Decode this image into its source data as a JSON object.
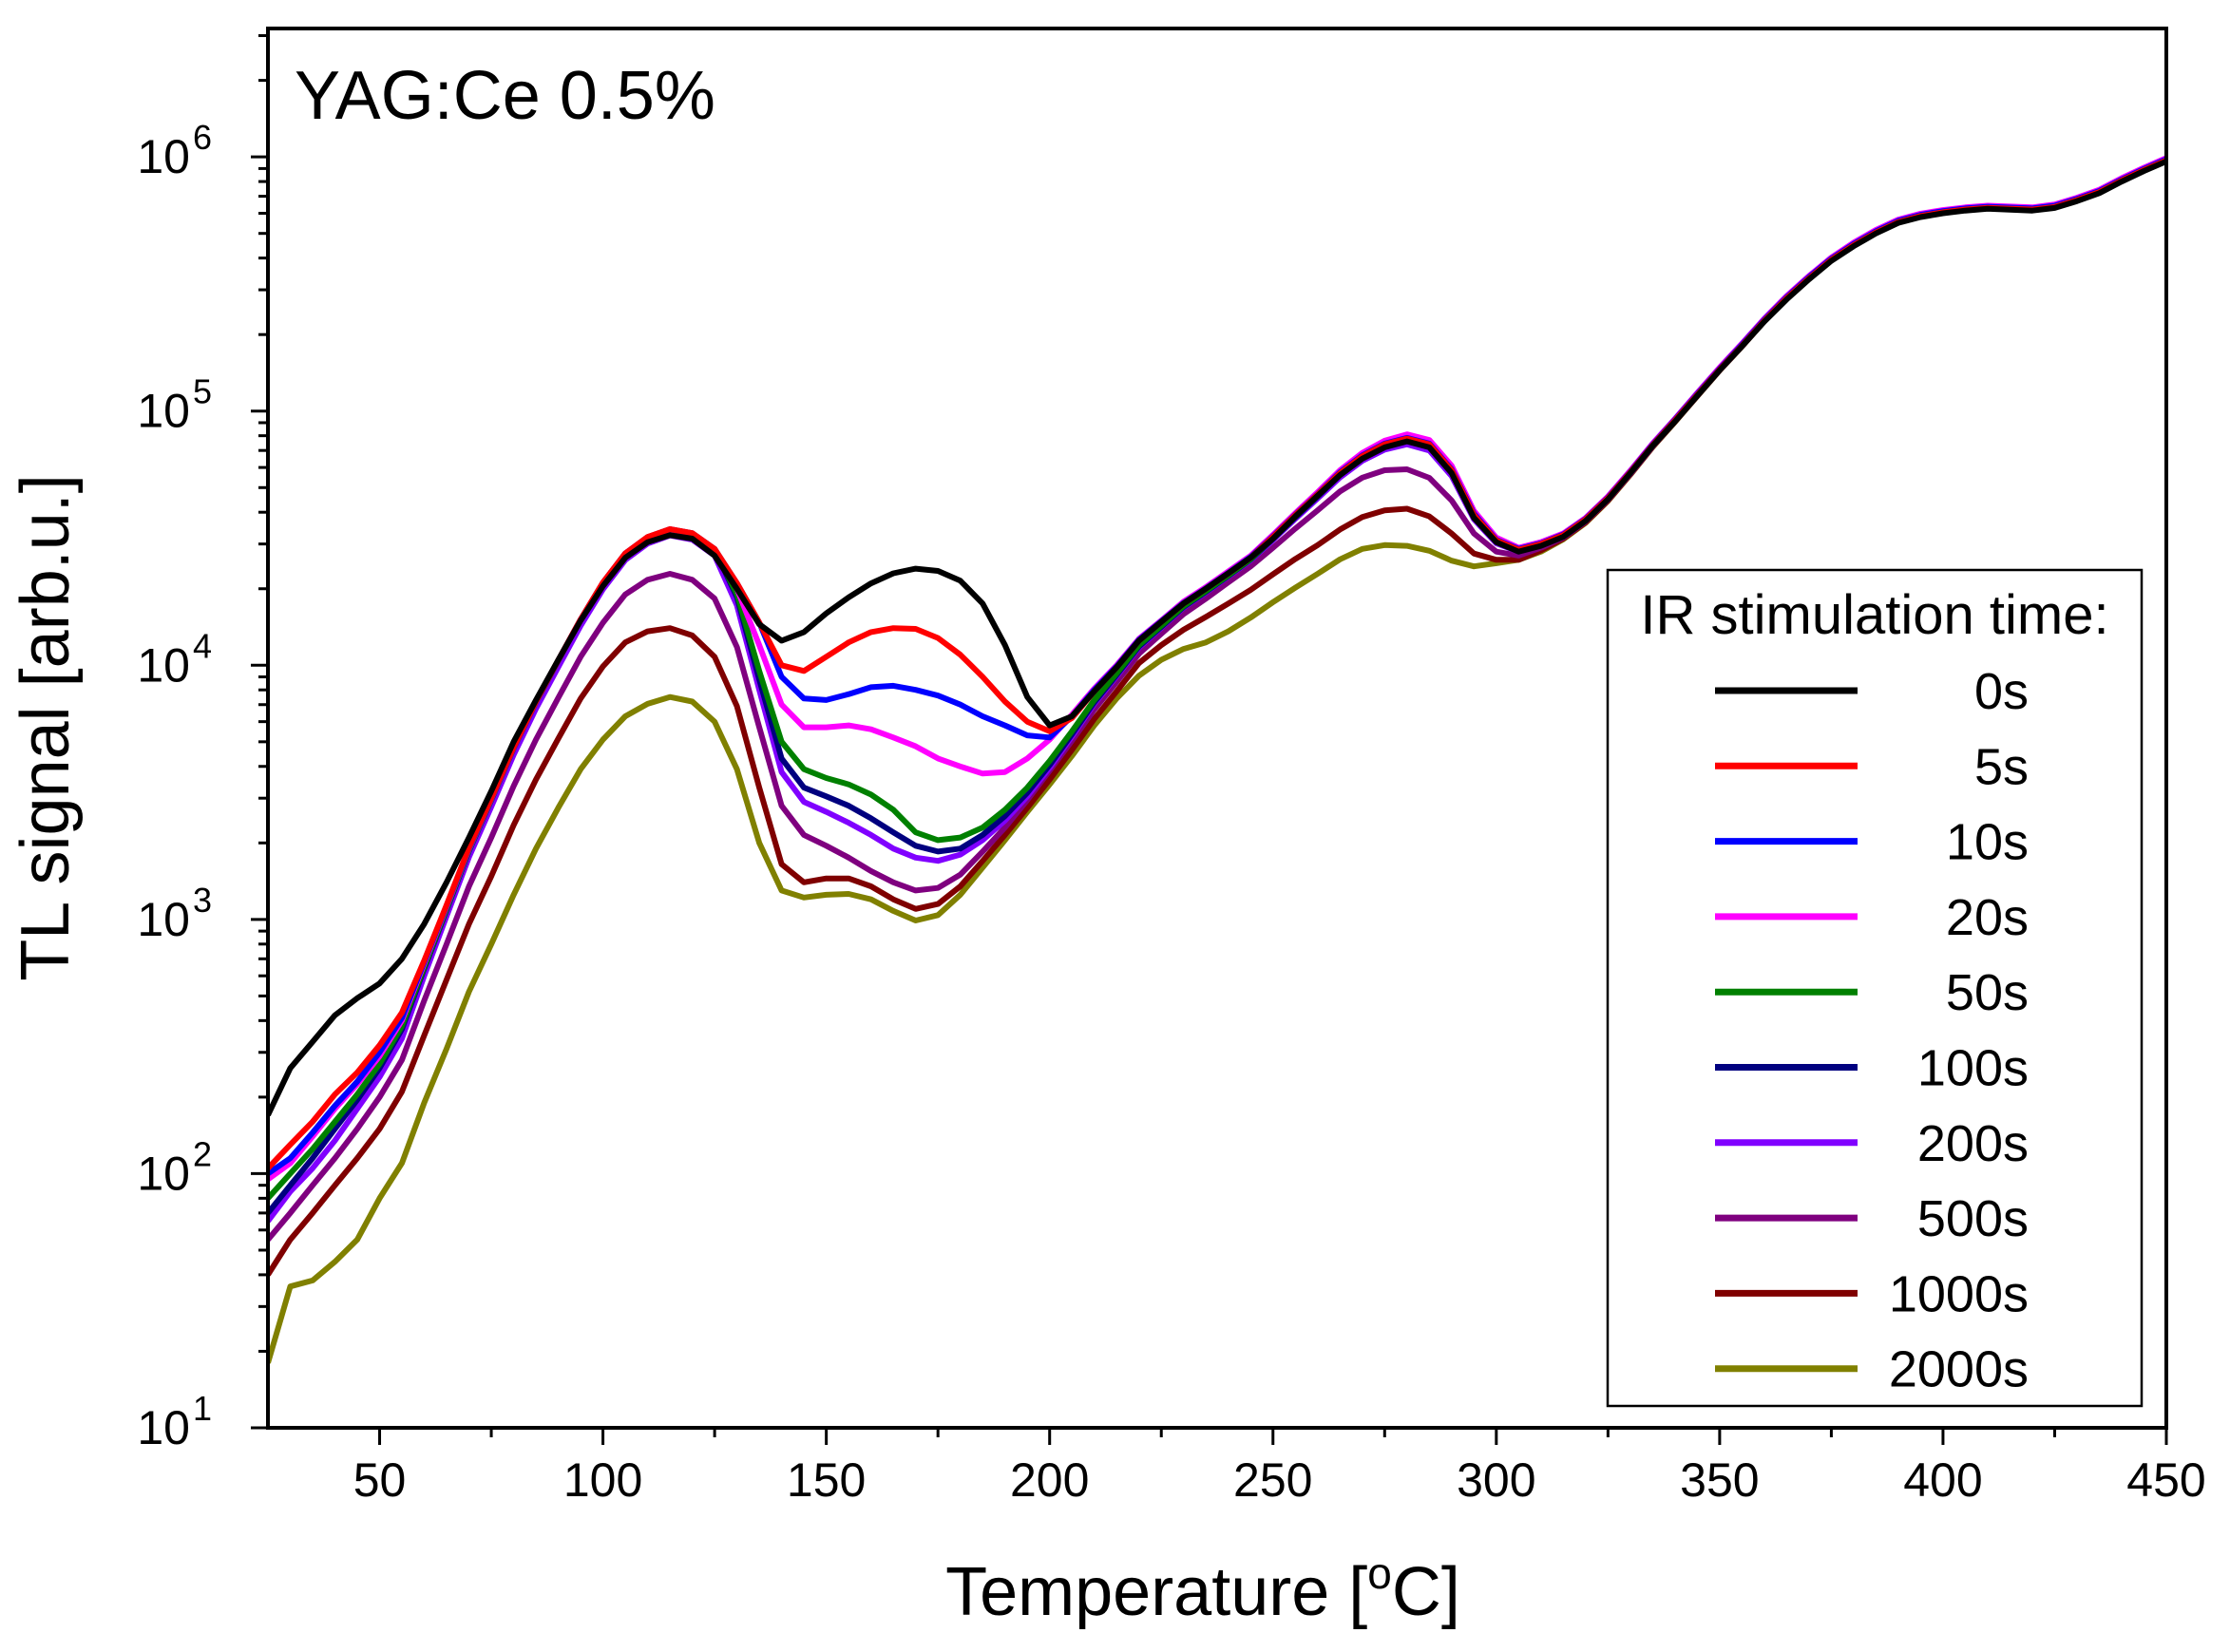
{
  "chart_data": {
    "type": "line",
    "annotation": "YAG:Ce 0.5%",
    "xlabel": "Temperature [",
    "xlabel_sup": "o",
    "xlabel_end": "C]",
    "ylabel": "TL signal [arb.u.]",
    "x_range": [
      25,
      450
    ],
    "y_range": [
      10,
      3200000
    ],
    "y_scale": "log",
    "x_ticks": [
      50,
      100,
      150,
      200,
      250,
      300,
      350,
      400,
      450
    ],
    "x_tick_labels": [
      "50",
      "100",
      "150",
      "200",
      "250",
      "300",
      "350",
      "400",
      "450"
    ],
    "y_ticks": [
      {
        "value": 10,
        "base": "10",
        "exp": "1"
      },
      {
        "value": 100,
        "base": "10",
        "exp": "2"
      },
      {
        "value": 1000,
        "base": "10",
        "exp": "3"
      },
      {
        "value": 10000,
        "base": "10",
        "exp": "4"
      },
      {
        "value": 100000,
        "base": "10",
        "exp": "5"
      },
      {
        "value": 1000000,
        "base": "10",
        "exp": "6"
      }
    ],
    "legend_title": "IR stimulation time:",
    "legend_position": "right",
    "x": [
      25,
      30,
      35,
      40,
      45,
      50,
      55,
      60,
      65,
      70,
      75,
      80,
      85,
      90,
      95,
      100,
      105,
      110,
      115,
      120,
      125,
      130,
      135,
      140,
      145,
      150,
      155,
      160,
      165,
      170,
      175,
      180,
      185,
      190,
      195,
      200,
      205,
      210,
      215,
      220,
      225,
      230,
      235,
      240,
      245,
      250,
      255,
      260,
      265,
      270,
      275,
      280,
      285,
      290,
      295,
      300,
      305,
      310,
      315,
      320,
      325,
      330,
      335,
      340,
      345,
      350,
      355,
      360,
      365,
      370,
      375,
      380,
      385,
      390,
      395,
      400,
      405,
      410,
      415,
      420,
      425,
      430,
      435,
      440,
      445,
      450
    ],
    "series": [
      {
        "name": "0s",
        "color": "#000000",
        "values": [
          170,
          260,
          330,
          420,
          490,
          560,
          700,
          960,
          1400,
          2100,
          3200,
          5000,
          7300,
          10500,
          15000,
          20500,
          26500,
          30500,
          32500,
          31500,
          27000,
          20000,
          14500,
          12500,
          13500,
          16000,
          18500,
          21000,
          23000,
          24000,
          23500,
          21500,
          17500,
          12000,
          7500,
          5800,
          6300,
          7900,
          9800,
          12500,
          14800,
          17500,
          20000,
          23000,
          26500,
          31500,
          38500,
          46500,
          56000,
          65000,
          72000,
          76000,
          72000,
          57000,
          38000,
          30500,
          28000,
          29500,
          32000,
          37000,
          45000,
          57000,
          73000,
          91000,
          115000,
          145000,
          180000,
          225000,
          275000,
          330000,
          390000,
          445000,
          500000,
          550000,
          580000,
          600000,
          615000,
          625000,
          620000,
          615000,
          630000,
          670000,
          720000,
          800000,
          880000,
          960000
        ]
      },
      {
        "name": "5s",
        "color": "#ff0000",
        "values": [
          105,
          130,
          160,
          205,
          250,
          320,
          430,
          690,
          1140,
          1920,
          3000,
          4760,
          7200,
          10480,
          15150,
          21170,
          27560,
          31970,
          34310,
          33100,
          28700,
          21030,
          14740,
          10000,
          9500,
          10800,
          12300,
          13500,
          14000,
          13900,
          12800,
          11000,
          9000,
          7200,
          6000,
          5500,
          6200,
          7900,
          9800,
          12500,
          14800,
          17500,
          20000,
          23000,
          26500,
          32000,
          39000,
          47000,
          57000,
          66500,
          74000,
          78000,
          74000,
          58500,
          39000,
          31000,
          28500,
          30000,
          32500,
          37500,
          45500,
          57500,
          73500,
          92000,
          116000,
          146000,
          181000,
          227000,
          278000,
          333000,
          394000,
          450000,
          505000,
          555000,
          586000,
          606000,
          621000,
          631000,
          626000,
          621000,
          636000,
          677000,
          728000,
          808000,
          889000,
          970000
        ]
      },
      {
        "name": "10s",
        "color": "#0000ff",
        "values": [
          100,
          115,
          145,
          185,
          230,
          300,
          410,
          680,
          1130,
          1900,
          2990,
          4750,
          7190,
          10470,
          15140,
          21140,
          27540,
          31940,
          34290,
          33080,
          28680,
          21010,
          14720,
          9000,
          7400,
          7300,
          7700,
          8200,
          8300,
          8000,
          7600,
          7000,
          6300,
          5800,
          5300,
          5200,
          6300,
          8000,
          9900,
          12600,
          14900,
          17600,
          20100,
          23100,
          26700,
          32200,
          39200,
          47200,
          57500,
          67000,
          74500,
          78500,
          74500,
          59000,
          39500,
          31200,
          28700,
          30200,
          32700,
          37700,
          45800,
          57800,
          74000,
          92700,
          117000,
          147000,
          183000,
          229000,
          281000,
          337000,
          398000,
          455000,
          510000,
          561000,
          592000,
          612000,
          627000,
          637000,
          632000,
          627000,
          643000,
          684000,
          735000,
          816000,
          898000,
          980000
        ]
      },
      {
        "name": "20s",
        "color": "#ff00ff",
        "values": [
          95,
          110,
          140,
          180,
          225,
          290,
          400,
          670,
          1120,
          1890,
          2980,
          4740,
          7180,
          10460,
          15130,
          21130,
          27530,
          31930,
          34280,
          33070,
          28670,
          20000,
          12000,
          7000,
          5700,
          5700,
          5800,
          5600,
          5200,
          4800,
          4300,
          4000,
          3750,
          3800,
          4300,
          5100,
          6400,
          8100,
          10000,
          12700,
          15000,
          17800,
          20300,
          23400,
          27000,
          32600,
          39700,
          48000,
          58500,
          68500,
          76500,
          81000,
          77000,
          61000,
          40500,
          31800,
          29000,
          30500,
          33000,
          38000,
          46200,
          58300,
          74600,
          93400,
          118000,
          148500,
          184500,
          231000,
          283500,
          340000,
          402000,
          460000,
          516000,
          567000,
          598000,
          618000,
          633000,
          643000,
          638000,
          633000,
          650000,
          691000,
          743000,
          825000,
          907000,
          990000
        ]
      },
      {
        "name": "50s",
        "color": "#008000",
        "values": [
          80,
          100,
          125,
          160,
          205,
          270,
          380,
          650,
          1100,
          1870,
          2960,
          4720,
          7160,
          10440,
          15110,
          21110,
          27510,
          31910,
          34260,
          33050,
          28650,
          19000,
          9500,
          5000,
          3900,
          3600,
          3400,
          3100,
          2700,
          2200,
          2050,
          2100,
          2300,
          2700,
          3300,
          4200,
          5500,
          7300,
          9300,
          12000,
          14300,
          17100,
          19600,
          22600,
          26200,
          31600,
          38500,
          46500,
          56500,
          66000,
          73500,
          77500,
          73500,
          58000,
          39000,
          31000,
          28500,
          30000,
          32500,
          37500,
          45500,
          57500,
          73500,
          92000,
          116000,
          146000,
          181000,
          227000,
          278000,
          333000,
          394000,
          450000,
          505000,
          555000,
          586000,
          606000,
          621000,
          631000,
          626000,
          621000,
          636000,
          677000,
          728000,
          808000,
          889000,
          970000
        ]
      },
      {
        "name": "100s",
        "color": "#00007f",
        "values": [
          70,
          90,
          115,
          150,
          195,
          260,
          370,
          640,
          1090,
          1860,
          2950,
          4710,
          7150,
          10430,
          15100,
          21100,
          27500,
          31900,
          34250,
          33040,
          28640,
          18500,
          8800,
          4300,
          3300,
          3050,
          2800,
          2500,
          2200,
          1950,
          1850,
          1900,
          2150,
          2550,
          3150,
          4050,
          5350,
          7150,
          9150,
          11850,
          14150,
          16950,
          19450,
          22450,
          26050,
          31400,
          38200,
          46100,
          56000,
          65400,
          72800,
          76800,
          72800,
          57500,
          38700,
          30800,
          28300,
          29800,
          32300,
          37300,
          45300,
          57200,
          73200,
          91600,
          115500,
          145500,
          180500,
          226500,
          277500,
          332500,
          393500,
          449500,
          504500,
          554500,
          585500,
          605500,
          620500,
          630500,
          625500,
          620500,
          635500,
          676500,
          727500,
          807500,
          888500,
          969500
        ]
      },
      {
        "name": "200s",
        "color": "#8000ff",
        "values": [
          65,
          85,
          105,
          135,
          180,
          240,
          340,
          600,
          1030,
          1760,
          2780,
          4440,
          6750,
          9850,
          14300,
          19900,
          25950,
          30100,
          32400,
          31200,
          27000,
          17200,
          8000,
          3800,
          2900,
          2650,
          2400,
          2150,
          1900,
          1750,
          1700,
          1800,
          2050,
          2450,
          3050,
          3950,
          5250,
          7050,
          9050,
          11750,
          14050,
          16850,
          19350,
          22350,
          25900,
          31100,
          37700,
          45300,
          54800,
          63700,
          70500,
          74000,
          70000,
          55500,
          37500,
          30200,
          28000,
          29600,
          32100,
          37100,
          45100,
          57000,
          73000,
          91400,
          115300,
          145300,
          180300,
          226300,
          277300,
          332300,
          393300,
          449300,
          504300,
          554300,
          585300,
          605300,
          620300,
          630300,
          625300,
          620300,
          635300,
          676300,
          727300,
          807300,
          888300,
          969300
        ]
      },
      {
        "name": "500s",
        "color": "#7f007f",
        "values": [
          55,
          70,
          90,
          115,
          150,
          200,
          280,
          480,
          800,
          1350,
          2100,
          3350,
          5100,
          7450,
          10800,
          14700,
          19000,
          21700,
          22900,
          21700,
          18300,
          11800,
          5700,
          2800,
          2150,
          1950,
          1750,
          1550,
          1400,
          1300,
          1330,
          1500,
          1850,
          2300,
          2950,
          3850,
          5050,
          6700,
          8600,
          11100,
          13300,
          15900,
          18300,
          21200,
          24500,
          29000,
          34500,
          40700,
          48300,
          54700,
          58500,
          59000,
          54600,
          44500,
          33000,
          28000,
          27000,
          29000,
          31800,
          36800,
          44800,
          56700,
          72700,
          91100,
          115000,
          145000,
          180000,
          226000,
          277000,
          332000,
          393000,
          449000,
          504000,
          554000,
          585000,
          605000,
          620000,
          630000,
          625000,
          620000,
          635000,
          676000,
          727000,
          807000,
          888000,
          969000
        ]
      },
      {
        "name": "1000s",
        "color": "#7f0000",
        "values": [
          40,
          55,
          70,
          90,
          115,
          150,
          210,
          350,
          580,
          960,
          1480,
          2350,
          3550,
          5150,
          7400,
          9900,
          12300,
          13600,
          14000,
          13100,
          10800,
          6900,
          3300,
          1650,
          1400,
          1450,
          1450,
          1350,
          1200,
          1100,
          1150,
          1350,
          1700,
          2150,
          2750,
          3550,
          4650,
          6150,
          7900,
          10200,
          12000,
          13800,
          15500,
          17500,
          19800,
          22800,
          26200,
          29700,
          34200,
          38300,
          40700,
          41300,
          38500,
          33000,
          27500,
          26000,
          26000,
          28300,
          31500,
          36500,
          44500,
          56400,
          72400,
          90800,
          114700,
          144700,
          179700,
          225700,
          276700,
          331700,
          392700,
          448700,
          503700,
          553700,
          584700,
          604700,
          619700,
          629700,
          624700,
          619700,
          634700,
          675700,
          726700,
          806700,
          887700,
          968700
        ]
      },
      {
        "name": "2000s",
        "color": "#808000",
        "values": [
          18,
          36,
          38,
          45,
          55,
          80,
          110,
          190,
          310,
          520,
          800,
          1250,
          1900,
          2750,
          3900,
          5100,
          6300,
          7050,
          7500,
          7200,
          6000,
          3900,
          2000,
          1300,
          1220,
          1250,
          1260,
          1200,
          1080,
          990,
          1040,
          1250,
          1600,
          2050,
          2650,
          3400,
          4400,
          5800,
          7400,
          9100,
          10500,
          11600,
          12300,
          13600,
          15400,
          17700,
          20200,
          22900,
          26100,
          28700,
          29700,
          29500,
          28200,
          25800,
          24500,
          25200,
          26000,
          28000,
          31300,
          36300,
          44300,
          56200,
          72200,
          90600,
          114500,
          144500,
          179500,
          225500,
          276500,
          331500,
          392500,
          448500,
          503500,
          553500,
          584500,
          604500,
          619500,
          629500,
          624500,
          619500,
          634500,
          675500,
          726500,
          806500,
          887500,
          968500
        ]
      }
    ]
  }
}
